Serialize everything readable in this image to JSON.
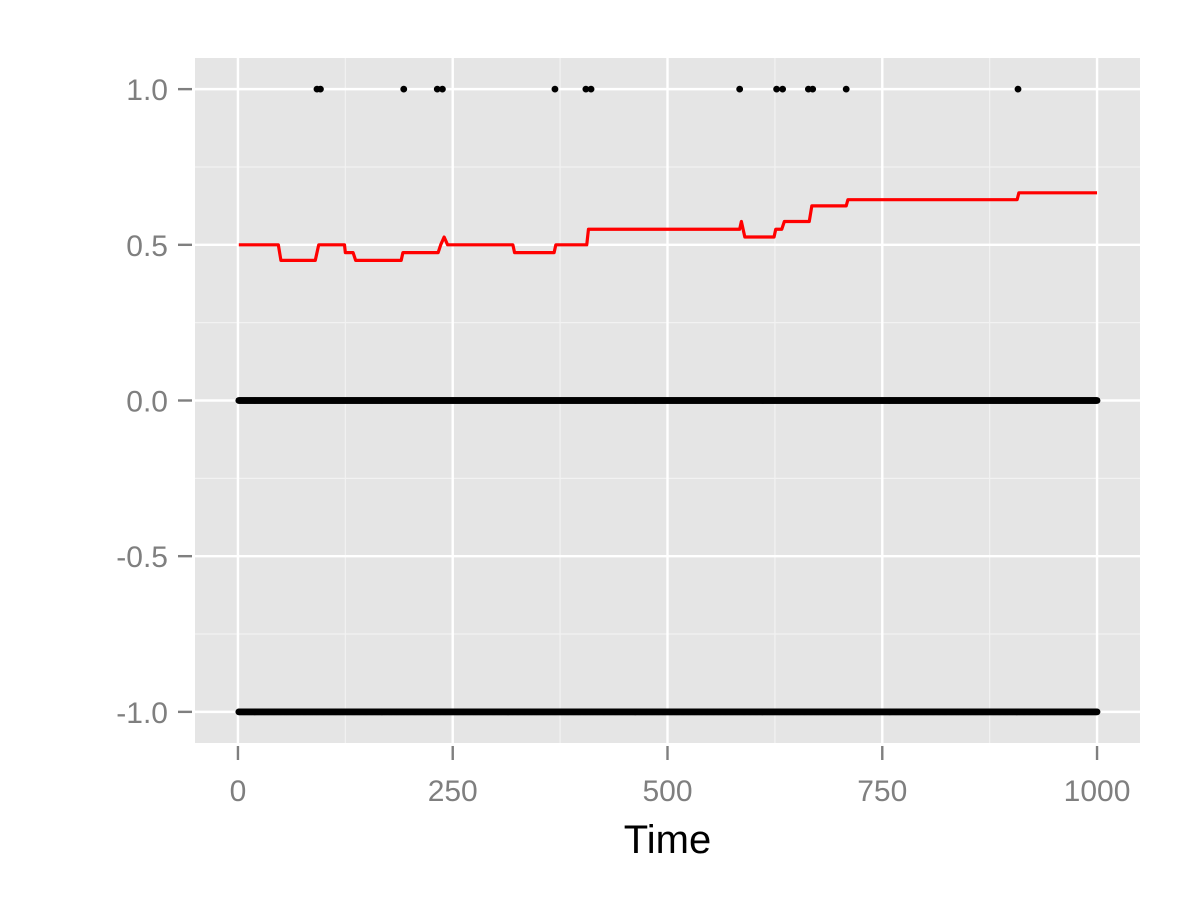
{
  "chart_data": {
    "type": "line",
    "title": "",
    "xlabel": "Time",
    "ylabel": "",
    "xlim": [
      -50,
      1050
    ],
    "ylim": [
      -1.1,
      1.1
    ],
    "x_ticks": [
      0,
      250,
      500,
      750,
      1000
    ],
    "x_tick_labels": [
      "0",
      "250",
      "500",
      "750",
      "1000"
    ],
    "y_ticks": [
      -1.0,
      -0.5,
      0.0,
      0.5,
      1.0
    ],
    "y_tick_labels": [
      "-1.0",
      "-0.5",
      "0.0",
      "0.5",
      "1.0"
    ],
    "grid": true,
    "legend": "none",
    "colors": {
      "panel": "#e5e5e5",
      "grid_major": "#ffffff",
      "grid_minor": "#f2f2f2",
      "line": "#ff0000",
      "points": "#000000",
      "ticks": "#7f7f7f"
    },
    "series": [
      {
        "kind": "line",
        "color": "#ff0000",
        "x": [
          1,
          47,
          50,
          90,
          94,
          124,
          125,
          134,
          137,
          190,
          192,
          233,
          236,
          240,
          244,
          320,
          322,
          368,
          370,
          406,
          408,
          584,
          586,
          590,
          616,
          624,
          626,
          633,
          636,
          665,
          668,
          708,
          710,
          907,
          909,
          1000
        ],
        "y": [
          0.5,
          0.5,
          0.45,
          0.45,
          0.5,
          0.5,
          0.475,
          0.475,
          0.45,
          0.45,
          0.475,
          0.475,
          0.5,
          0.525,
          0.5,
          0.5,
          0.475,
          0.475,
          0.5,
          0.5,
          0.55,
          0.55,
          0.575,
          0.525,
          0.525,
          0.525,
          0.55,
          0.55,
          0.575,
          0.575,
          0.625,
          0.625,
          0.645,
          0.645,
          0.667,
          0.667
        ]
      },
      {
        "kind": "points",
        "y": 1.0,
        "color": "#000000",
        "x": [
          92,
          96,
          193,
          232,
          238,
          369,
          405,
          411,
          584,
          627,
          634,
          664,
          669,
          708,
          908
        ]
      },
      {
        "kind": "points",
        "y": 0.0,
        "color": "#000000",
        "x_range": [
          1,
          1000
        ]
      },
      {
        "kind": "points",
        "y": -1.0,
        "color": "#000000",
        "x_range": [
          1,
          1000
        ]
      }
    ]
  }
}
